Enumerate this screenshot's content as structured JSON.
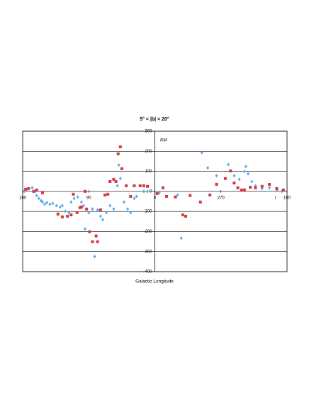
{
  "chart_data": {
    "type": "scatter",
    "title": "5° < |b| < 20°",
    "annotation": "RM",
    "x_label": "Galactic Longitude",
    "x_axis_symbol": "l",
    "xlim": [
      180,
      -180
    ],
    "xticks": [
      180,
      90,
      0,
      {
        "value": -90,
        "label": "270"
      },
      {
        "value": -180,
        "label": "180"
      }
    ],
    "ylim": [
      -400,
      300
    ],
    "yticks": [
      300,
      200,
      100,
      0,
      -100,
      -200,
      -300,
      -400
    ],
    "grid": true,
    "series": [
      {
        "name": "blue",
        "color": "#5aaaf0",
        "marker": "diamond",
        "x": [
          178,
          175,
          167,
          163,
          161,
          158,
          155,
          153,
          150,
          147,
          143,
          139,
          134,
          129,
          126,
          122,
          117,
          114,
          110,
          105,
          100,
          97,
          95,
          90,
          85,
          82,
          78,
          74,
          71,
          66,
          61,
          56,
          51,
          49,
          47,
          42,
          37,
          33,
          28,
          25,
          15,
          10,
          -6,
          -31,
          -36,
          -64,
          -72,
          -84,
          -100,
          -108,
          -115,
          -122,
          -124,
          -127,
          -132,
          -137,
          -146,
          -156,
          -166,
          -173
        ],
        "values": [
          0,
          7,
          18,
          0,
          -21,
          -35,
          -46,
          -53,
          -64,
          -56,
          -64,
          -60,
          -71,
          -78,
          -71,
          -99,
          -106,
          -53,
          -35,
          -28,
          -53,
          -71,
          -187,
          -106,
          -88,
          -325,
          -92,
          -124,
          -141,
          -106,
          -71,
          -88,
          28,
          131,
          64,
          -53,
          -88,
          -106,
          -35,
          -25,
          0,
          0,
          -7,
          -18,
          -233,
          194,
          117,
          78,
          134,
          78,
          60,
          99,
          124,
          88,
          49,
          28,
          14,
          18,
          7,
          0
        ]
      },
      {
        "name": "red",
        "color": "#d7373f",
        "marker": "square",
        "x": [
          176,
          172,
          165,
          161,
          153,
          132,
          126,
          119,
          114,
          111,
          106,
          102,
          100,
          95,
          93,
          89,
          85,
          80,
          78,
          74,
          68,
          64,
          61,
          56,
          53,
          50,
          47,
          45,
          39,
          33,
          28,
          20,
          15,
          10,
          -3,
          -11,
          -16,
          -28,
          -38,
          -42,
          -48,
          -62,
          -75,
          -84,
          -96,
          -103,
          -108,
          -113,
          -118,
          -122,
          -130,
          -137,
          -146,
          -156,
          -166,
          -175
        ],
        "values": [
          11,
          14,
          0,
          7,
          -7,
          -113,
          -127,
          -124,
          -117,
          -14,
          -106,
          -81,
          -78,
          0,
          -88,
          -201,
          -251,
          -222,
          -251,
          -92,
          -18,
          -14,
          49,
          60,
          49,
          187,
          222,
          113,
          28,
          -25,
          28,
          28,
          28,
          25,
          -11,
          18,
          -25,
          -28,
          -117,
          -124,
          -21,
          -53,
          -18,
          35,
          64,
          102,
          42,
          18,
          7,
          7,
          21,
          18,
          25,
          35,
          14,
          7
        ]
      }
    ]
  }
}
